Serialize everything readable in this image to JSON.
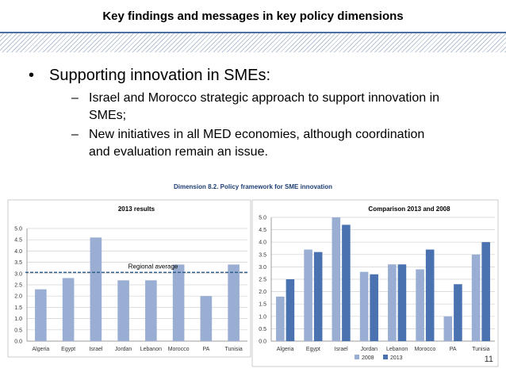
{
  "header": {
    "title": "Key findings and messages in key policy dimensions"
  },
  "bullet": {
    "text": "Supporting innovation in SMEs:",
    "subitems": [
      [
        "Israel and Morocco strategic approach to support innovation in",
        "SMEs;"
      ],
      [
        "New initiatives in all MED economies, although coordination",
        "and evaluation remain an issue."
      ]
    ]
  },
  "figure_title": "Dimension 8.2. Policy framework for SME innovation",
  "page_number": "11",
  "chart_data": [
    {
      "type": "bar",
      "title": "2013 results",
      "categories": [
        "Algeria",
        "Egypt",
        "Israel",
        "Jordan",
        "Lebanon",
        "Morocco",
        "PA",
        "Tunisia"
      ],
      "values": [
        2.3,
        2.8,
        4.6,
        2.7,
        2.7,
        3.4,
        2.0,
        3.4
      ],
      "ylim": [
        0,
        5
      ],
      "yticks": [
        "0.0",
        "0.5",
        "1.0",
        "1.5",
        "2.0",
        "2.5",
        "3.0",
        "3.5",
        "4.0",
        "4.5",
        "5.0"
      ],
      "reference_line": {
        "label": "Regional average",
        "value": 3.05
      },
      "grid": true,
      "color": "#9aaed3"
    },
    {
      "type": "bar",
      "title": "Comparison 2013 and 2008",
      "categories": [
        "Algeria",
        "Egypt",
        "Israel",
        "Jordan",
        "Lebanon",
        "Morocco",
        "PA",
        "Tunisia"
      ],
      "series": [
        {
          "name": "2008",
          "values": [
            1.8,
            3.7,
            5.0,
            2.8,
            3.1,
            2.9,
            1.0,
            3.5
          ],
          "color": "#9aaed3"
        },
        {
          "name": "2013",
          "values": [
            2.5,
            3.6,
            4.7,
            2.7,
            3.1,
            3.7,
            2.3,
            4.0
          ],
          "color": "#4a71b0"
        }
      ],
      "ylim": [
        0,
        5
      ],
      "yticks": [
        "0.0",
        "0.5",
        "1.0",
        "1.5",
        "2.0",
        "2.5",
        "3.0",
        "3.5",
        "4.0",
        "4.5",
        "5.0"
      ],
      "legend": "bottom",
      "grid": true
    }
  ]
}
